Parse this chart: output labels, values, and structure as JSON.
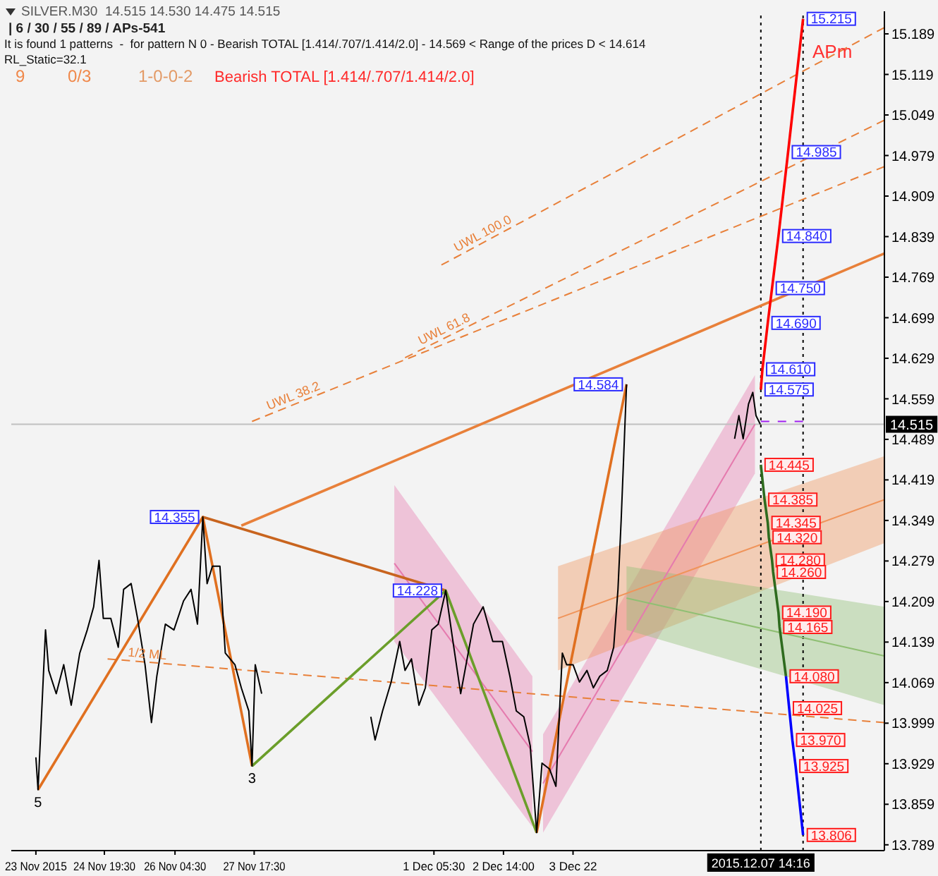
{
  "chart_data": {
    "type": "line",
    "title": "SILVER.M30  14.515 14.530 14.475 14.515",
    "subtitle": "| 6 / 30 / 55 / 89 / APs-541",
    "annotations": [
      "It is found 1 patterns  -  for pattern N 0 - Bearish TOTAL [1.414/.707/1.414/2.0] - 14.569 < Range of the prices D < 14.614",
      "RL_Static=32.1",
      "9",
      "0/3",
      "1-0-0-2",
      "Bearish TOTAL [1.414/.707/1.414/2.0]",
      "APm",
      {
        "text": "15.215",
        "x": "2015-12-08T10:00",
        "y": 15.215
      },
      {
        "text": "14.985",
        "x": "2015-12-08T03:00",
        "y": 14.985
      },
      {
        "text": "14.840",
        "x": "2015-12-07T22:30",
        "y": 14.84
      },
      {
        "text": "14.750",
        "x": "2015-12-07T19:30",
        "y": 14.75
      },
      {
        "text": "14.690",
        "x": "2015-12-07T17:30",
        "y": 14.69
      },
      {
        "text": "14.610",
        "x": "2015-12-07T15:00",
        "y": 14.61
      },
      {
        "text": "14.575",
        "x": "2015-12-07T14:16",
        "y": 14.575
      },
      {
        "text": "14.445",
        "x": "2015-12-07T14:16",
        "y": 14.445
      },
      {
        "text": "14.385",
        "x": "2015-12-07T16:00",
        "y": 14.385
      },
      {
        "text": "14.345",
        "x": "2015-12-07T17:30",
        "y": 14.345
      },
      {
        "text": "14.320",
        "x": "2015-12-07T18:00",
        "y": 14.32
      },
      {
        "text": "14.280",
        "x": "2015-12-07T19:30",
        "y": 14.28
      },
      {
        "text": "14.260",
        "x": "2015-12-07T20:00",
        "y": 14.26
      },
      {
        "text": "14.190",
        "x": "2015-12-07T22:30",
        "y": 14.19
      },
      {
        "text": "14.165",
        "x": "2015-12-07T23:00",
        "y": 14.165
      },
      {
        "text": "14.080",
        "x": "2015-12-08T02:00",
        "y": 14.08
      },
      {
        "text": "14.025",
        "x": "2015-12-08T03:30",
        "y": 14.025
      },
      {
        "text": "13.970",
        "x": "2015-12-08T05:00",
        "y": 13.97
      },
      {
        "text": "13.925",
        "x": "2015-12-08T06:30",
        "y": 13.925
      },
      {
        "text": "13.806",
        "x": "2015-12-08T10:00",
        "y": 13.806
      },
      {
        "text": "14.355",
        "x": "2015-11-26T17:30",
        "y": 14.355
      },
      {
        "text": "14.228",
        "x": "2015-12-01T11:00",
        "y": 14.228
      },
      {
        "text": "14.584",
        "x": "2015-12-04T23:30",
        "y": 14.584
      },
      {
        "text": "3",
        "x": "2015-11-27T16:30",
        "y": 13.925
      },
      {
        "text": "5",
        "x": "2015-11-23T12:30",
        "y": 13.884
      }
    ],
    "xlim": [
      "2015-11-23T00:00",
      "2015-12-10T00:00"
    ],
    "xticks": [
      {
        "value": "2015-11-23T11:30",
        "label": "23 Nov 2015"
      },
      {
        "value": "2015-11-24T19:30",
        "label": "24 Nov 19:30"
      },
      {
        "value": "2015-11-26T04:30",
        "label": "26 Nov 04:30"
      },
      {
        "value": "2015-11-27T17:30",
        "label": "27 Nov 17:30"
      },
      {
        "value": "2015-12-01T05:30",
        "label": "1 Dec 05:30"
      },
      {
        "value": "2015-12-02T14:00",
        "label": "2 Dec 14:00"
      },
      {
        "value": "2015-12-03T22:30",
        "label": "3 Dec 22"
      }
    ],
    "ylim": [
      13.779,
      15.228
    ],
    "yticks": [
      13.789,
      13.859,
      13.929,
      13.999,
      14.069,
      14.139,
      14.209,
      14.279,
      14.349,
      14.419,
      14.489,
      14.559,
      14.629,
      14.699,
      14.769,
      14.839,
      14.909,
      14.979,
      15.049,
      15.119,
      15.189
    ],
    "ref_lines": [
      {
        "axis": "y",
        "value": 14.515,
        "label": "14.515",
        "color": "#c0c0c0"
      },
      {
        "axis": "x",
        "value": "2015-12-07T14:16",
        "label": "2015.12.07 14:16",
        "color": "#000000",
        "line_style": "dotted"
      },
      {
        "axis": "x",
        "value": "2015-12-08T10:00",
        "label": null,
        "color": "#000000",
        "line_style": "dotted"
      }
    ],
    "series": [
      {
        "color": "#e57aae",
        "x": [
          "2015-11-30T11:00",
          "2015-12-03T03:30"
        ],
        "values": [
          14.275,
          13.95
        ],
        "lower": [
          14.14,
          13.82
        ],
        "upper": [
          14.41,
          14.08
        ]
      },
      {
        "color": "#e57aae",
        "x": [
          "2015-12-03T08:30",
          "2015-12-07T11:30"
        ],
        "values": [
          13.895,
          14.515
        ],
        "lower": [
          13.81,
          14.43
        ],
        "upper": [
          13.98,
          14.6
        ]
      },
      {
        "color": "#f0945a",
        "x": [
          "2015-12-03T15:30",
          "2015-12-10T00:00"
        ],
        "values": [
          14.18,
          14.385
        ],
        "lower": [
          14.09,
          14.31
        ],
        "upper": [
          14.27,
          14.46
        ]
      },
      {
        "color": "#8fbf73",
        "x": [
          "2015-12-04T23:30",
          "2015-12-10T00:00"
        ],
        "values": [
          14.215,
          14.115
        ],
        "lower": [
          14.16,
          14.03
        ],
        "upper": [
          14.27,
          14.2
        ]
      },
      {
        "name": "UWL 100.0",
        "color": "#e8803a",
        "line_style": "dashed",
        "x": [
          "2015-12-01T09:00",
          "2015-12-10T00:00"
        ],
        "values": [
          14.79,
          15.2
        ]
      },
      {
        "name": "UWL 61.8",
        "color": "#e8803a",
        "line_style": "dashed",
        "x": [
          "2015-11-30T16:00",
          "2015-12-10T00:00"
        ],
        "values": [
          14.63,
          15.04
        ]
      },
      {
        "name": "UWL 38.2",
        "color": "#e8803a",
        "line_style": "dashed",
        "x": [
          "2015-11-27T16:30",
          "2015-12-10T00:00"
        ],
        "values": [
          14.52,
          14.96
        ]
      },
      {
        "name": "1/2 ML",
        "color": "#e8803a",
        "line_style": "dashed",
        "x": [
          "2015-11-24T21:00",
          "2015-12-10T00:00"
        ],
        "values": [
          14.11,
          14.0
        ]
      },
      {
        "color": "#e8803a",
        "x": [
          "2015-11-27T11:30",
          "2015-12-10T00:00"
        ],
        "values": [
          14.34,
          14.81
        ]
      },
      {
        "color": "#e07020",
        "x": [
          "2015-11-23T12:30",
          "2015-11-26T17:30",
          "2015-11-27T16:30"
        ],
        "values": [
          13.884,
          14.355,
          13.925
        ]
      },
      {
        "color": "#c8641e",
        "x": [
          "2015-11-26T17:30",
          "2015-12-01T11:00"
        ],
        "values": [
          14.355,
          14.228
        ]
      },
      {
        "color": "#6b9e2a",
        "x": [
          "2015-11-27T16:30",
          "2015-12-01T11:00",
          "2015-12-03T05:30"
        ],
        "values": [
          13.925,
          14.228,
          13.81
        ]
      },
      {
        "color": "#e07020",
        "x": [
          "2015-12-03T05:30",
          "2015-12-04T23:30"
        ],
        "values": [
          13.81,
          14.584
        ]
      },
      {
        "color": "#ff0000",
        "x": [
          "2015-12-07T14:16",
          "2015-12-07T15:00",
          "2015-12-07T17:30",
          "2015-12-07T19:30",
          "2015-12-07T22:30",
          "2015-12-08T03:00",
          "2015-12-08T10:00"
        ],
        "values": [
          14.575,
          14.61,
          14.69,
          14.75,
          14.84,
          14.985,
          15.215
        ]
      },
      {
        "color": "#2e6b1e",
        "x": [
          "2015-12-07T14:16",
          "2015-12-07T16:00",
          "2015-12-07T17:30",
          "2015-12-07T18:00",
          "2015-12-07T19:30",
          "2015-12-07T20:00",
          "2015-12-07T22:30",
          "2015-12-07T23:00",
          "2015-12-08T02:00"
        ],
        "values": [
          14.445,
          14.385,
          14.345,
          14.32,
          14.28,
          14.26,
          14.19,
          14.165,
          14.08
        ]
      },
      {
        "color": "#0000ff",
        "x": [
          "2015-12-08T02:00",
          "2015-12-08T03:30",
          "2015-12-08T05:00",
          "2015-12-08T06:30",
          "2015-12-08T10:00"
        ],
        "values": [
          14.08,
          14.025,
          13.97,
          13.925,
          13.806
        ]
      },
      {
        "color": "#a020f0",
        "line_style": "dashed",
        "x": [
          "2015-12-07T14:16",
          "2015-12-08T10:00"
        ],
        "values": [
          14.52,
          14.52
        ]
      },
      {
        "color": "#000000",
        "x": [
          "2015-11-23T11:30",
          "2015-11-23T12:30",
          "2015-11-23T16:00",
          "2015-11-23T17:30",
          "2015-11-23T21:00",
          "2015-11-24T00:30",
          "2015-11-24T04:00",
          "2015-11-24T08:00",
          "2015-11-24T11:30",
          "2015-11-24T14:30",
          "2015-11-24T17:00",
          "2015-11-24T19:00",
          "2015-11-24T22:30",
          "2015-11-25T02:00",
          "2015-11-25T04:30",
          "2015-11-25T08:00",
          "2015-11-25T11:00",
          "2015-11-25T14:30",
          "2015-11-25T17:30",
          "2015-11-25T20:00",
          "2015-11-26T00:00",
          "2015-11-26T04:00",
          "2015-11-26T08:30",
          "2015-11-26T12:00",
          "2015-11-26T15:00",
          "2015-11-26T17:30",
          "2015-11-26T19:30",
          "2015-11-26T22:00",
          "2015-11-27T01:30",
          "2015-11-27T04:00",
          "2015-11-27T08:30",
          "2015-11-27T11:30",
          "2015-11-27T15:00",
          "2015-11-27T16:30",
          "2015-11-27T18:00",
          "2015-11-27T21:00",
          "2015-11-28T12:00",
          "2015-11-30T00:00",
          "2015-11-30T02:00",
          "2015-11-30T05:30",
          "2015-11-30T09:30",
          "2015-11-30T13:30",
          "2015-11-30T16:00",
          "2015-11-30T19:00",
          "2015-11-30T22:30",
          "2015-12-01T01:30",
          "2015-12-01T04:30",
          "2015-12-01T07:30",
          "2015-12-01T11:00",
          "2015-12-01T14:00",
          "2015-12-01T18:00",
          "2015-12-01T20:30",
          "2015-12-02T00:00",
          "2015-12-02T04:30",
          "2015-12-02T09:00",
          "2015-12-02T13:30",
          "2015-12-02T17:00",
          "2015-12-02T20:00",
          "2015-12-02T23:30",
          "2015-12-03T02:30",
          "2015-12-03T05:30",
          "2015-12-03T08:00",
          "2015-12-03T11:30",
          "2015-12-03T14:30",
          "2015-12-03T17:30",
          "2015-12-03T19:30",
          "2015-12-03T22:30",
          "2015-12-04T01:30",
          "2015-12-04T05:00",
          "2015-12-04T08:00",
          "2015-12-04T11:00",
          "2015-12-04T14:30",
          "2015-12-04T17:30",
          "2015-12-04T19:30",
          "2015-12-04T21:00",
          "2015-12-04T22:30",
          "2015-12-04T23:30",
          "2015-12-05T12:00",
          "2015-12-07T02:00",
          "2015-12-07T04:00",
          "2015-12-07T06:00",
          "2015-12-07T08:30",
          "2015-12-07T10:30",
          "2015-12-07T12:00",
          "2015-12-07T14:00"
        ],
        "values": [
          13.94,
          13.884,
          14.16,
          14.09,
          14.05,
          14.1,
          14.03,
          14.12,
          14.16,
          14.2,
          14.28,
          14.18,
          14.18,
          14.13,
          14.23,
          14.24,
          14.18,
          14.1,
          14.0,
          14.08,
          14.17,
          14.16,
          14.21,
          14.23,
          14.17,
          14.355,
          14.24,
          14.27,
          14.27,
          14.12,
          14.1,
          14.06,
          14.02,
          13.925,
          14.1,
          14.05,
          null,
          14.01,
          13.97,
          14.02,
          14.07,
          14.14,
          14.09,
          14.11,
          14.03,
          14.06,
          14.16,
          14.17,
          14.228,
          14.15,
          14.05,
          14.1,
          14.17,
          14.2,
          14.14,
          14.14,
          14.08,
          14.02,
          14.01,
          13.96,
          13.81,
          13.93,
          13.92,
          13.89,
          14.12,
          14.1,
          14.1,
          14.07,
          14.09,
          14.06,
          14.08,
          14.09,
          14.13,
          14.23,
          14.35,
          14.49,
          14.584,
          null,
          14.49,
          14.53,
          14.49,
          14.55,
          14.57,
          14.53,
          14.515
        ]
      }
    ]
  }
}
